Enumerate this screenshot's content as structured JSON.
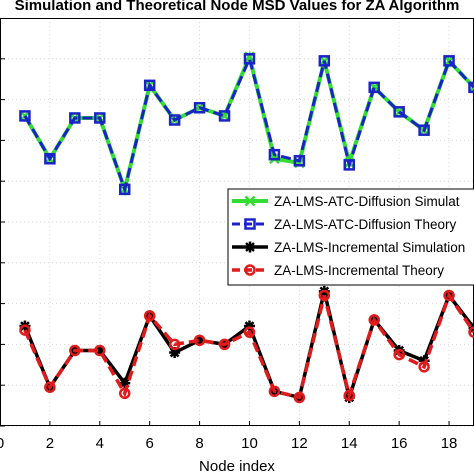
{
  "chart_data": {
    "type": "line",
    "title": "Simulation and Theoretical Node MSD Values for ZA Algorithm",
    "xlabel": "Node index",
    "ylabel": "",
    "xlim": [
      0,
      19
    ],
    "ylim": [
      0,
      10
    ],
    "xticks": [
      0,
      2,
      4,
      6,
      8,
      10,
      12,
      14,
      16,
      18
    ],
    "xtick_labels": [
      "0",
      "2",
      "4",
      "6",
      "8",
      "10",
      "12",
      "14",
      "16",
      "18"
    ],
    "yticks": [
      0,
      1,
      2,
      3,
      4,
      5,
      6,
      7,
      8,
      9
    ],
    "grid": true,
    "legend_position": "right",
    "x": [
      1,
      2,
      3,
      4,
      5,
      6,
      7,
      8,
      9,
      10,
      11,
      12,
      13,
      14,
      15,
      16,
      17,
      18,
      19
    ],
    "series": [
      {
        "name": "ZA-LMS-ATC-Diffusion Simulation",
        "legend_label": "ZA-LMS-ATC-Diffusion Simulat",
        "color": "#33dd33",
        "dashed": false,
        "marker": "x",
        "width": 4,
        "values": [
          7.6,
          6.55,
          7.55,
          7.55,
          5.8,
          8.35,
          7.5,
          7.8,
          7.6,
          9.05,
          6.55,
          6.45,
          8.95,
          6.45,
          8.3,
          7.7,
          7.25,
          8.95,
          8.3
        ]
      },
      {
        "name": "ZA-LMS-ATC-Diffusion Theory",
        "legend_label": "ZA-LMS-ATC-Diffusion Theory",
        "color": "#1a23c8",
        "dashed": true,
        "marker": "square",
        "width": 3,
        "values": [
          7.6,
          6.55,
          7.55,
          7.55,
          5.8,
          8.35,
          7.5,
          7.8,
          7.6,
          9.0,
          6.65,
          6.5,
          8.95,
          6.4,
          8.3,
          7.7,
          7.25,
          8.95,
          8.3
        ]
      },
      {
        "name": "ZA-LMS-Incremental Simulation",
        "legend_label": "ZA-LMS-Incremental Simulation",
        "color": "#000000",
        "dashed": false,
        "marker": "star",
        "width": 3.5,
        "values": [
          2.45,
          0.95,
          1.85,
          1.85,
          1.05,
          2.7,
          1.8,
          2.1,
          2.0,
          2.45,
          0.85,
          0.7,
          3.3,
          0.7,
          2.6,
          1.85,
          1.6,
          3.2,
          2.4
        ]
      },
      {
        "name": "ZA-LMS-Incremental Theory",
        "legend_label": "ZA-LMS-Incremental Theory",
        "color": "#e01b1b",
        "dashed": true,
        "marker": "circle",
        "width": 3.5,
        "values": [
          2.35,
          0.95,
          1.85,
          1.85,
          0.8,
          2.7,
          2.0,
          2.1,
          2.0,
          2.3,
          0.85,
          0.7,
          3.2,
          0.75,
          2.6,
          1.75,
          1.45,
          3.2,
          2.3
        ]
      }
    ]
  }
}
